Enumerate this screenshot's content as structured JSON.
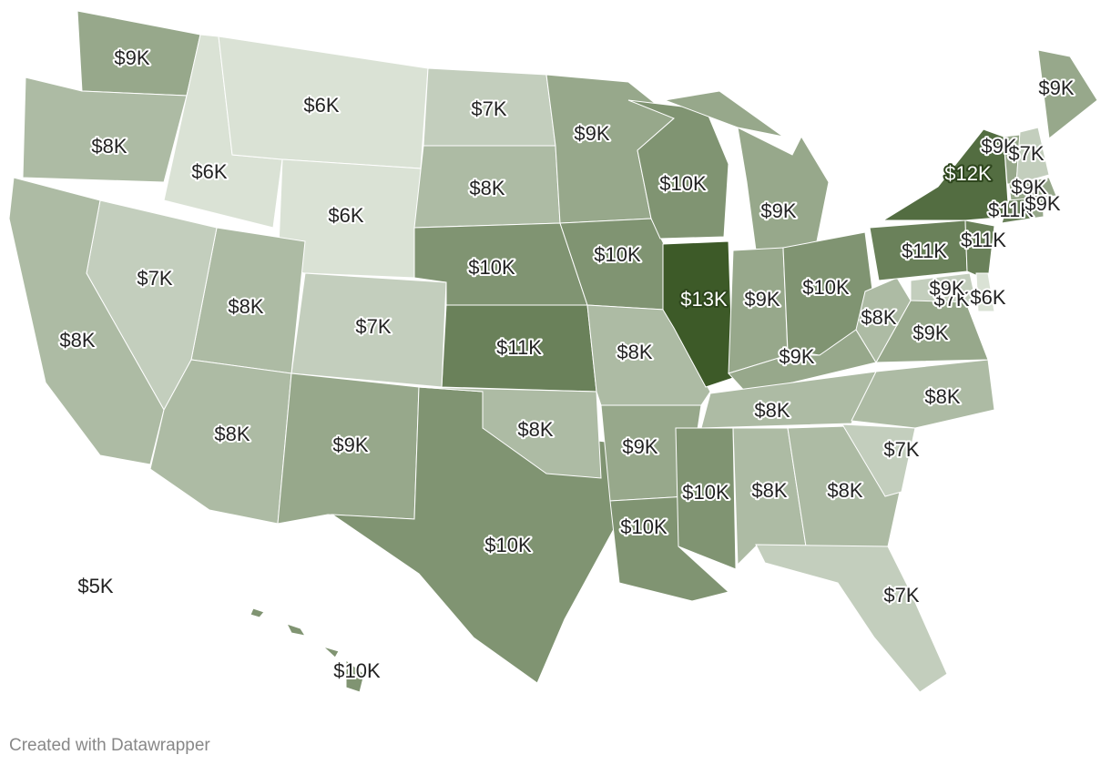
{
  "regions": [
    {
      "label": "$9K",
      "value": 9000
    },
    {
      "label": "$8K",
      "value": 8000
    },
    {
      "label": "$6K",
      "value": 6000
    },
    {
      "label": "$6K",
      "value": 6000
    },
    {
      "label": "$6K",
      "value": 6000
    },
    {
      "label": "$7K",
      "value": 7000
    },
    {
      "label": "$8K",
      "value": 8000
    },
    {
      "label": "$10K",
      "value": 10000
    },
    {
      "label": "$11K",
      "value": 11000
    },
    {
      "label": "$7K",
      "value": 7000
    },
    {
      "label": "$8K",
      "value": 8000
    },
    {
      "label": "$7K",
      "value": 7000
    },
    {
      "label": "$8K",
      "value": 8000
    },
    {
      "label": "$8K",
      "value": 8000
    },
    {
      "label": "$9K",
      "value": 9000
    },
    {
      "label": "$10K",
      "value": 10000
    },
    {
      "label": "$8K",
      "value": 8000
    },
    {
      "label": "$9K",
      "value": 9000
    },
    {
      "label": "$10K",
      "value": 10000
    },
    {
      "label": "$8K",
      "value": 8000
    },
    {
      "label": "$9K",
      "value": 9000
    },
    {
      "label": "$10K",
      "value": 10000
    },
    {
      "label": "$10K",
      "value": 10000
    },
    {
      "label": "$13K",
      "value": 13000
    },
    {
      "label": "$9K",
      "value": 9000
    },
    {
      "label": "$9K",
      "value": 9000
    },
    {
      "label": "$10K",
      "value": 10000
    },
    {
      "label": "$9K",
      "value": 9000
    },
    {
      "label": "$8K",
      "value": 8000
    },
    {
      "label": "$10K",
      "value": 10000
    },
    {
      "label": "$8K",
      "value": 8000
    },
    {
      "label": "$8K",
      "value": 8000
    },
    {
      "label": "$7K",
      "value": 7000
    },
    {
      "label": "$7K",
      "value": 7000
    },
    {
      "label": "$8K",
      "value": 8000
    },
    {
      "label": "$9K",
      "value": 9000
    },
    {
      "label": "$8K",
      "value": 8000
    },
    {
      "label": "$11K",
      "value": 11000
    },
    {
      "label": "$12K",
      "value": 12000
    },
    {
      "label": "$11K",
      "value": 11000
    },
    {
      "label": "$7K",
      "value": 7000
    },
    {
      "label": "$6K",
      "value": 6000
    },
    {
      "label": "$9K",
      "value": 9000
    },
    {
      "label": "$9K",
      "value": 9000
    },
    {
      "label": "$9K",
      "value": 9000
    },
    {
      "label": "$7K",
      "value": 7000
    },
    {
      "label": "$9K",
      "value": 9000
    },
    {
      "label": "$11K",
      "value": 11000
    },
    {
      "label": "$9K",
      "value": 9000
    },
    {
      "label": "$5K",
      "value": 5000
    },
    {
      "label": "$10K",
      "value": 10000
    }
  ],
  "color_range": [
    "#f0f5ee",
    "#3d5a28"
  ],
  "footer": "Created with Datawrapper"
}
